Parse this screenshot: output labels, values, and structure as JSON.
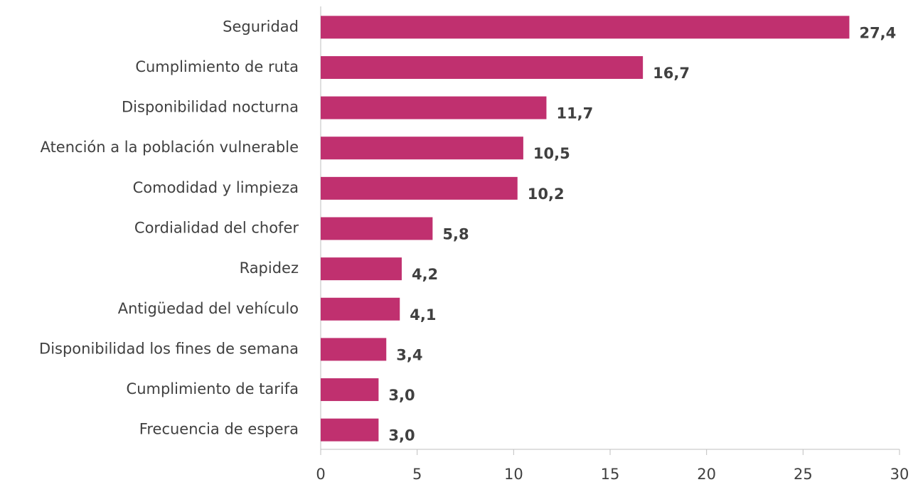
{
  "chart_data": {
    "type": "bar",
    "orientation": "horizontal",
    "categories": [
      "Seguridad",
      "Cumplimiento de ruta",
      "Disponibilidad nocturna",
      "Atención a la población vulnerable",
      "Comodidad y limpieza",
      "Cordialidad del chofer",
      "Rapidez",
      "Antigüedad del vehículo",
      "Disponibilidad los fines de semana",
      "Cumplimiento de tarifa",
      "Frecuencia de espera"
    ],
    "values": [
      27.4,
      16.7,
      11.7,
      10.5,
      10.2,
      5.8,
      4.2,
      4.1,
      3.4,
      3.0,
      3.0
    ],
    "value_labels": [
      "27,4",
      "16,7",
      "11,7",
      "10,5",
      "10,2",
      "5,8",
      "4,2",
      "4,1",
      "3,4",
      "3,0",
      "3,0"
    ],
    "color": "#c0306f",
    "xlim": [
      0,
      30
    ],
    "xticks": [
      0,
      5,
      10,
      15,
      20,
      25,
      30
    ],
    "grid": false
  }
}
